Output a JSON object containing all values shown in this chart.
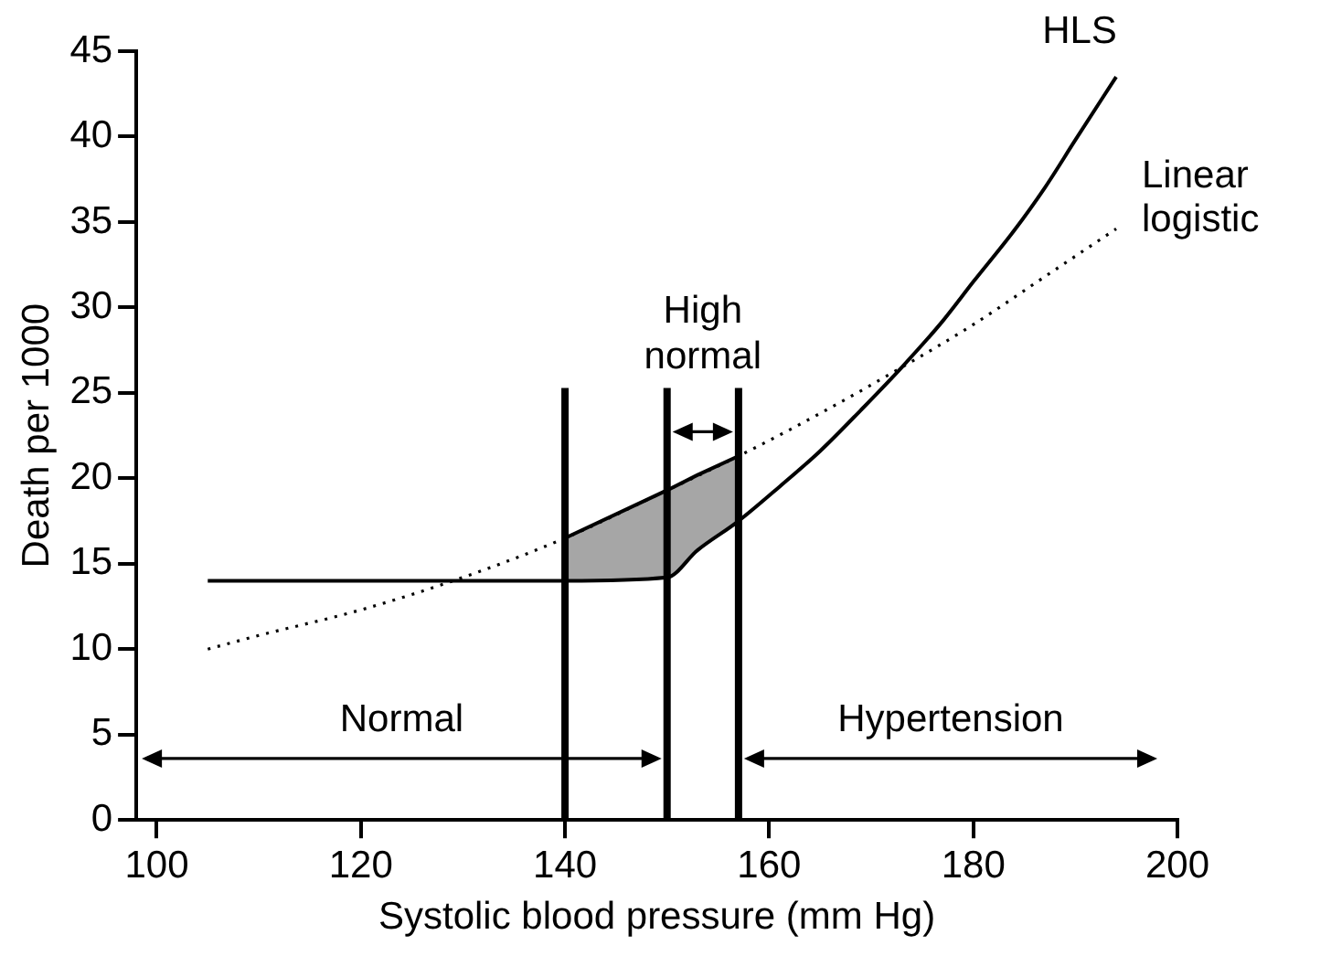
{
  "chart_data": {
    "type": "line",
    "xlabel": "Systolic blood pressure (mm Hg)",
    "ylabel": "Death per 1000",
    "xlim": [
      98,
      200
    ],
    "xticks": [
      100,
      120,
      140,
      160,
      180,
      200
    ],
    "ylim": [
      0,
      45
    ],
    "yticks": [
      0,
      5,
      10,
      15,
      20,
      25,
      30,
      35,
      40,
      45
    ],
    "grid": false,
    "legend": false,
    "marker": "none",
    "series": [
      {
        "name": "HLS",
        "color": "#000000",
        "line_style": "solid",
        "x": [
          105,
          120,
          140,
          150,
          153,
          157,
          161,
          165,
          169,
          173,
          177,
          180,
          184,
          187,
          190,
          194
        ],
        "values": [
          14,
          14,
          14,
          14.2,
          15.8,
          17.5,
          19.5,
          21.6,
          24,
          26.5,
          29.2,
          31.5,
          34.5,
          37,
          39.8,
          43.5
        ]
      },
      {
        "name": "Linear logistic",
        "color": "#000000",
        "line_style": "dotted",
        "x": [
          105,
          110,
          120,
          130,
          140,
          150,
          157,
          165,
          173,
          180,
          187,
          194
        ],
        "values": [
          10,
          10.8,
          12.3,
          14.2,
          16.5,
          19.3,
          21.3,
          23.8,
          26.5,
          29,
          31.8,
          34.6
        ]
      },
      {
        "type": "area",
        "color": "#a6a6a6",
        "x": [
          140,
          150,
          153,
          157
        ],
        "values": [
          16.5,
          19.3,
          20.2,
          21.3
        ]
      }
    ],
    "ref_lines": [
      {
        "axis": "x",
        "value": 140
      },
      {
        "axis": "x",
        "value": 150
      },
      {
        "axis": "x",
        "value": 157
      }
    ],
    "annotations": [
      "Normal",
      "High\nnormal",
      "Hypertension"
    ]
  }
}
